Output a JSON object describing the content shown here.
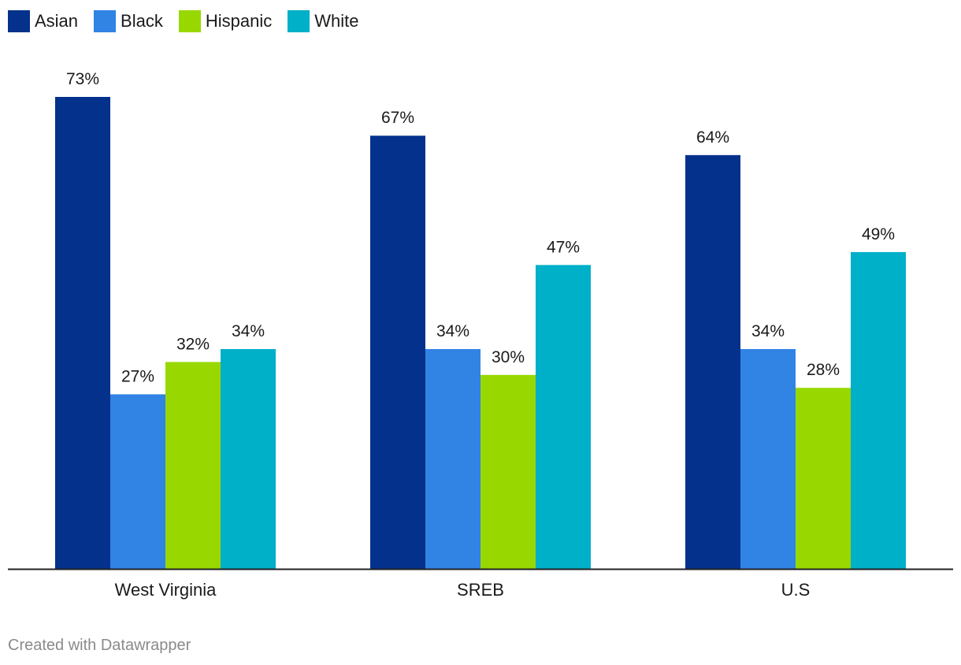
{
  "chart_data": {
    "type": "bar",
    "categories": [
      "West Virginia",
      "SREB",
      "U.S"
    ],
    "series": [
      {
        "name": "Asian",
        "color": "#03318c",
        "values": [
          73,
          67,
          64
        ]
      },
      {
        "name": "Black",
        "color": "#3183e4",
        "values": [
          27,
          34,
          34
        ]
      },
      {
        "name": "Hispanic",
        "color": "#98d800",
        "values": [
          32,
          30,
          28
        ]
      },
      {
        "name": "White",
        "color": "#00afc8",
        "values": [
          34,
          47,
          49
        ]
      }
    ],
    "value_suffix": "%",
    "ylim": [
      0,
      73
    ],
    "grid": false,
    "legend": "top-left"
  },
  "footer": {
    "credit": "Created with Datawrapper"
  }
}
